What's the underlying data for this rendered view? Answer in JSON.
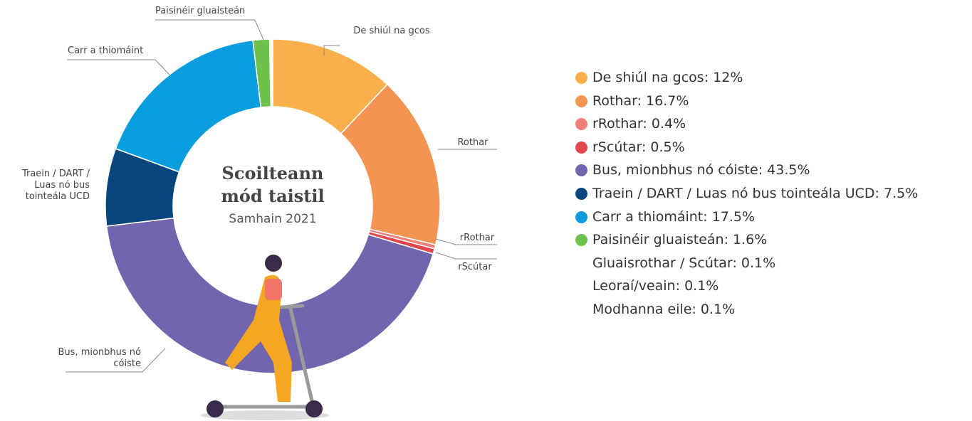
{
  "chart_data": {
    "type": "pie",
    "title": "Scoilteann mód taistil",
    "subtitle": "Samhain 2021",
    "categories": [
      "De shiúl na gcos",
      "Rothar",
      "rRothar",
      "rScútar",
      "Bus, mionbhus nó cóiste",
      "Traein / DART / Luas nó bus tointeála UCD",
      "Carr a thiomáint",
      "Paisinéir gluaisteán",
      "Gluaisrothar / Scútar",
      "Leoraí/veain",
      "Modhanna eile"
    ],
    "values": [
      12,
      16.7,
      0.4,
      0.5,
      43.5,
      7.5,
      17.5,
      1.6,
      0.1,
      0.1,
      0.1
    ],
    "value_labels": [
      "12%",
      "16.7%",
      "0.4%",
      "0.5%",
      "43.5%",
      "7.5%",
      "17.5%",
      "1.6%",
      "0.1%",
      "0.1%",
      "0.1%"
    ],
    "colors": [
      "#f9b04a",
      "#f39453",
      "#f07f77",
      "#e2474b",
      "#7165ae",
      "#08467d",
      "#0a9ddd",
      "#6cc24a",
      null,
      null,
      null
    ]
  }
}
